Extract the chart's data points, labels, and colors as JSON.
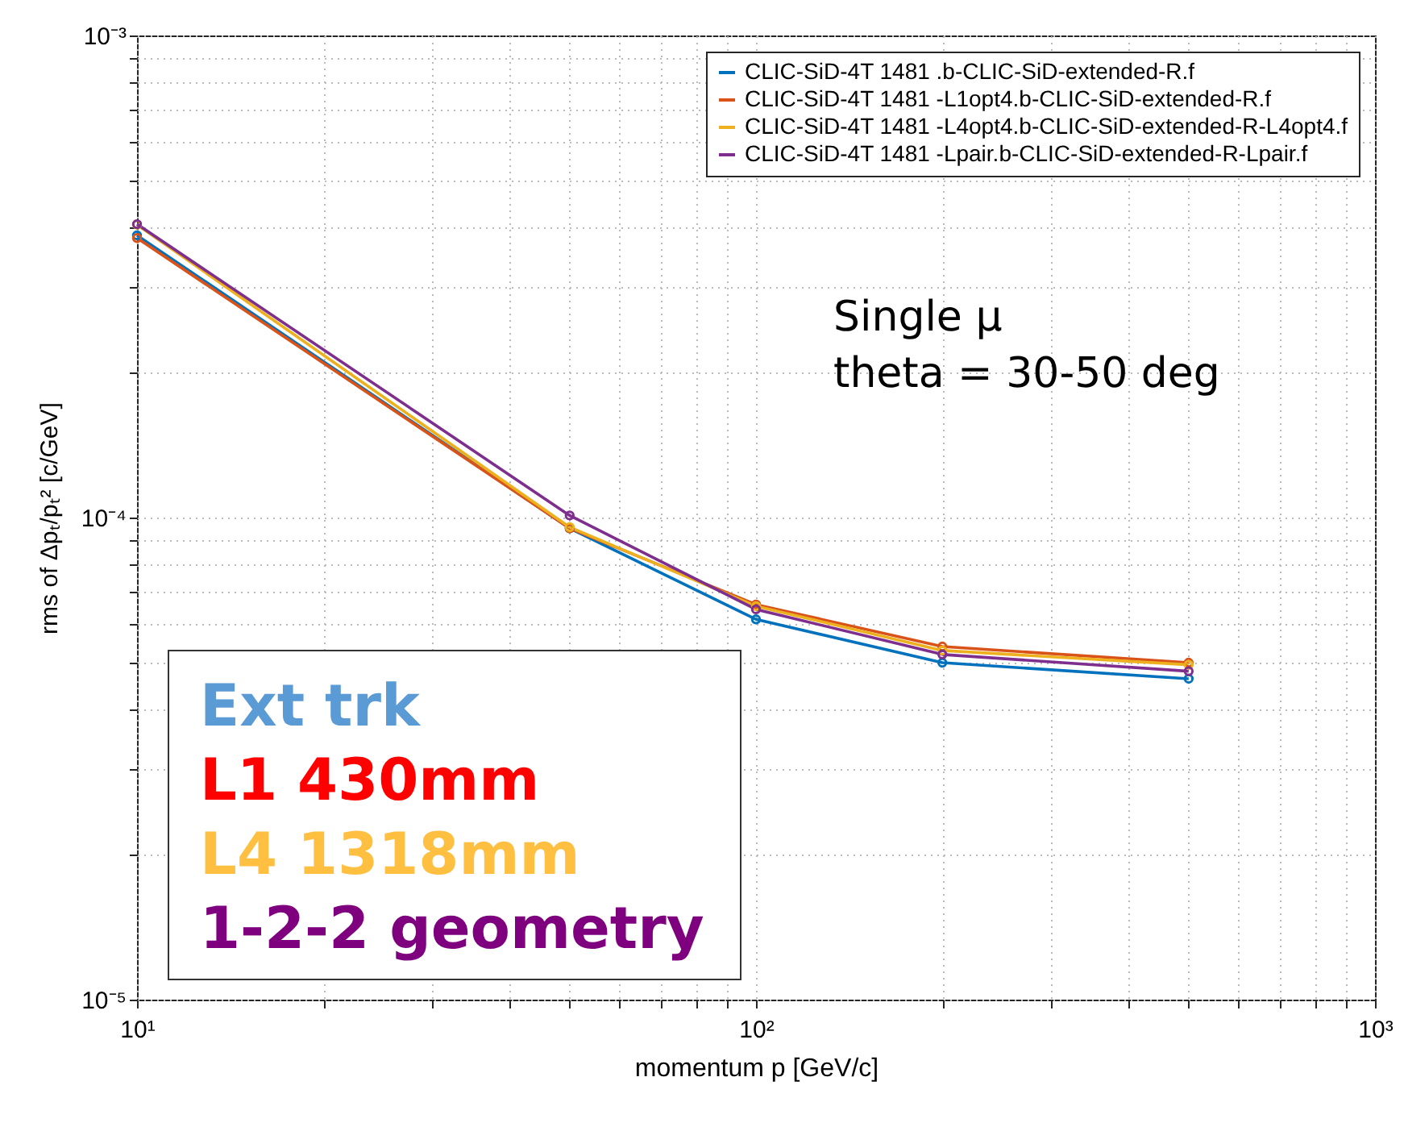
{
  "chart_data": {
    "type": "line",
    "xlabel": "momentum p [GeV/c]",
    "ylabel": "rms of  Δpₜ/pₜ² [c/GeV]",
    "log": "xy",
    "grid": true,
    "legend": "top right",
    "marker": "circle",
    "line_style": "solid",
    "x": [
      10,
      50,
      100,
      200,
      500
    ],
    "xlim": [
      10,
      1000
    ],
    "ylim": [
      1e-05,
      0.001
    ],
    "xticks": [
      {
        "value": 10,
        "label": "10¹"
      },
      {
        "value": 20,
        "label": null
      },
      {
        "value": 30,
        "label": null
      },
      {
        "value": 40,
        "label": null
      },
      {
        "value": 50,
        "label": null
      },
      {
        "value": 60,
        "label": null
      },
      {
        "value": 70,
        "label": null
      },
      {
        "value": 80,
        "label": null
      },
      {
        "value": 90,
        "label": null
      },
      {
        "value": 100,
        "label": "10²"
      },
      {
        "value": 200,
        "label": null
      },
      {
        "value": 300,
        "label": null
      },
      {
        "value": 400,
        "label": null
      },
      {
        "value": 500,
        "label": null
      },
      {
        "value": 600,
        "label": null
      },
      {
        "value": 700,
        "label": null
      },
      {
        "value": 800,
        "label": null
      },
      {
        "value": 900,
        "label": null
      },
      {
        "value": 1000,
        "label": "10³"
      }
    ],
    "yticks": [
      {
        "value": 1e-05,
        "label": "10⁻⁵"
      },
      {
        "value": 2e-05,
        "label": null
      },
      {
        "value": 3e-05,
        "label": null
      },
      {
        "value": 4e-05,
        "label": null
      },
      {
        "value": 5e-05,
        "label": null
      },
      {
        "value": 6e-05,
        "label": null
      },
      {
        "value": 7e-05,
        "label": null
      },
      {
        "value": 8e-05,
        "label": null
      },
      {
        "value": 9e-05,
        "label": null
      },
      {
        "value": 0.0001,
        "label": "10⁻⁴"
      },
      {
        "value": 0.0002,
        "label": null
      },
      {
        "value": 0.0003,
        "label": null
      },
      {
        "value": 0.0004,
        "label": null
      },
      {
        "value": 0.0005,
        "label": null
      },
      {
        "value": 0.0006,
        "label": null
      },
      {
        "value": 0.0007,
        "label": null
      },
      {
        "value": 0.0008,
        "label": null
      },
      {
        "value": 0.0009,
        "label": null
      },
      {
        "value": 0.001,
        "label": "10⁻³"
      }
    ],
    "series": [
      {
        "name": "CLIC-SiD-4T 1481 .b-CLIC-SiD-extended-R.f",
        "color": "#0072bd",
        "values": [
          0.000385,
          9.5e-05,
          6.15e-05,
          5e-05,
          4.63e-05
        ]
      },
      {
        "name": "CLIC-SiD-4T 1481 -L1opt4.b-CLIC-SiD-extended-R.f",
        "color": "#d95319",
        "values": [
          0.00038,
          9.5e-05,
          6.6e-05,
          5.4e-05,
          5e-05
        ]
      },
      {
        "name": "CLIC-SiD-4T 1481 -L4opt4.b-CLIC-SiD-extended-R-L4opt4.f",
        "color": "#edb120",
        "values": [
          0.000405,
          9.55e-05,
          6.55e-05,
          5.3e-05,
          4.95e-05
        ]
      },
      {
        "name": "CLIC-SiD-4T 1481 -Lpair.b-CLIC-SiD-extended-R-Lpair.f",
        "color": "#7e2f8e",
        "values": [
          0.000406,
          0.000101,
          6.45e-05,
          5.2e-05,
          4.8e-05
        ]
      }
    ],
    "annotations": [
      "Single μ",
      "theta = 30-50 deg",
      "Ext trk",
      "L1 430mm",
      "L4 1318mm",
      "1-2-2 geometry"
    ]
  }
}
